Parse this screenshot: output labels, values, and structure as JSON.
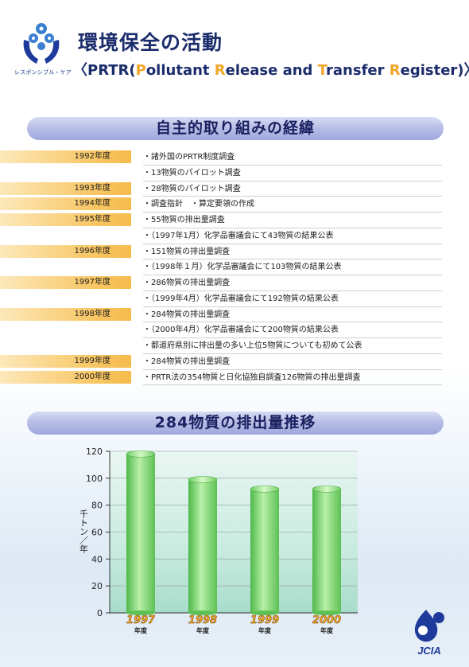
{
  "header": {
    "logo_caption": "レスポンシブル・ケア",
    "title": "環境保全の活動",
    "subtitle_parts": [
      {
        "t": "〈",
        "hl": false
      },
      {
        "t": "PRTR(",
        "hl": false
      },
      {
        "t": "P",
        "hl": true
      },
      {
        "t": "ollutant ",
        "hl": false
      },
      {
        "t": "R",
        "hl": true
      },
      {
        "t": "elease and ",
        "hl": false
      },
      {
        "t": "T",
        "hl": true
      },
      {
        "t": "ransfer ",
        "hl": false
      },
      {
        "t": "R",
        "hl": true
      },
      {
        "t": "egister)〉",
        "hl": false
      }
    ]
  },
  "section1": {
    "title": "自主的取り組みの経緯"
  },
  "timeline": [
    {
      "year": "1992年度",
      "text": "・諸外国のPRTR制度調査"
    },
    {
      "year": "",
      "text": "・13物質のパイロット調査"
    },
    {
      "year": "1993年度",
      "text": "・28物質のパイロット調査"
    },
    {
      "year": "1994年度",
      "text": "・調査指針　・算定要領の作成"
    },
    {
      "year": "1995年度",
      "text": "・55物質の排出量調査"
    },
    {
      "year": "",
      "text": "・（1997年1月）化学品審議会にて43物質の結果公表"
    },
    {
      "year": "1996年度",
      "text": "・151物質の排出量調査"
    },
    {
      "year": "",
      "text": "・（1998年１月）化学品審議会にて103物質の結果公表"
    },
    {
      "year": "1997年度",
      "text": "・286物質の排出量調査"
    },
    {
      "year": "",
      "text": "・（1999年4月）化学品審議会にて192物質の結果公表"
    },
    {
      "year": "1998年度",
      "text": "・284物質の排出量調査"
    },
    {
      "year": "",
      "text": "・（2000年4月）化学品審議会にて200物質の結果公表"
    },
    {
      "year": "",
      "text": "・都道府県別に排出量の多い上位5物質についても初めて公表"
    },
    {
      "year": "1999年度",
      "text": "・284物質の排出量調査"
    },
    {
      "year": "2000年度",
      "text": "・PRTR法の354物質と日化協独自調査126物質の排出量調査"
    }
  ],
  "section2": {
    "title": "284物質の排出量推移"
  },
  "chart_data": {
    "type": "bar",
    "title": "284物質の排出量推移",
    "ylabel": "千トン／年",
    "ylim": [
      0,
      120
    ],
    "yticks": [
      0,
      20,
      40,
      60,
      80,
      100,
      120
    ],
    "grid": true,
    "categories": [
      "1997",
      "1998",
      "1999",
      "2000"
    ],
    "category_suffix": "年度",
    "values": [
      118,
      99,
      92,
      92
    ],
    "bar_color": "#7fd36e"
  },
  "footer": {
    "logo_text": "JCIA"
  }
}
